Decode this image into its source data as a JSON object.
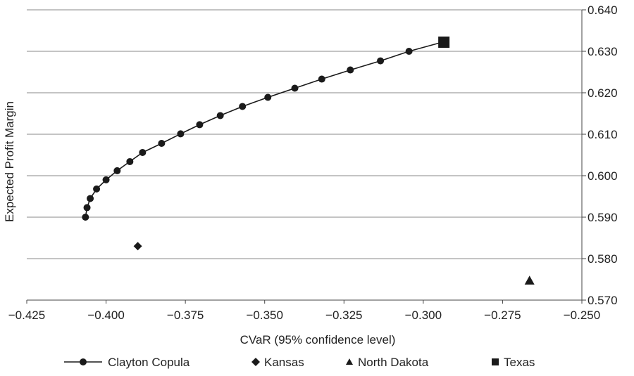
{
  "chart_data": {
    "type": "scatter",
    "title": "",
    "xlabel": "CVaR (95% confidence level)",
    "ylabel": "Expected Profit Margin",
    "xlim": [
      -0.425,
      -0.25
    ],
    "ylim": [
      0.57,
      0.64
    ],
    "x_ticks": [
      "−0.425",
      "−0.400",
      "−0.375",
      "−0.350",
      "−0.325",
      "−0.300",
      "−0.275",
      "−0.250"
    ],
    "y_ticks": [
      "0.570",
      "0.580",
      "0.590",
      "0.600",
      "0.610",
      "0.620",
      "0.630",
      "0.640"
    ],
    "grid": "horizontal",
    "legend_position": "bottom",
    "series": [
      {
        "name": "Clayton Copula",
        "marker": "circle-line",
        "color": "#1a1a1a",
        "points": [
          [
            -0.4065,
            0.59
          ],
          [
            -0.406,
            0.5923
          ],
          [
            -0.405,
            0.5945
          ],
          [
            -0.403,
            0.5968
          ],
          [
            -0.4,
            0.599
          ],
          [
            -0.3965,
            0.6012
          ],
          [
            -0.3925,
            0.6034
          ],
          [
            -0.3885,
            0.6056
          ],
          [
            -0.3825,
            0.6078
          ],
          [
            -0.3765,
            0.6101
          ],
          [
            -0.3705,
            0.6123
          ],
          [
            -0.364,
            0.6145
          ],
          [
            -0.357,
            0.6167
          ],
          [
            -0.349,
            0.6189
          ],
          [
            -0.3405,
            0.6211
          ],
          [
            -0.332,
            0.6233
          ],
          [
            -0.323,
            0.6255
          ],
          [
            -0.3135,
            0.6277
          ],
          [
            -0.3045,
            0.63
          ],
          [
            -0.294,
            0.6322
          ]
        ]
      },
      {
        "name": "Kansas",
        "marker": "diamond",
        "color": "#1a1a1a",
        "points": [
          [
            -0.39,
            0.583
          ]
        ]
      },
      {
        "name": "North Dakota",
        "marker": "triangle",
        "color": "#1a1a1a",
        "points": [
          [
            -0.2665,
            0.5747
          ]
        ]
      },
      {
        "name": "Texas",
        "marker": "square",
        "color": "#1a1a1a",
        "points": [
          [
            -0.2935,
            0.6322
          ]
        ]
      }
    ]
  }
}
